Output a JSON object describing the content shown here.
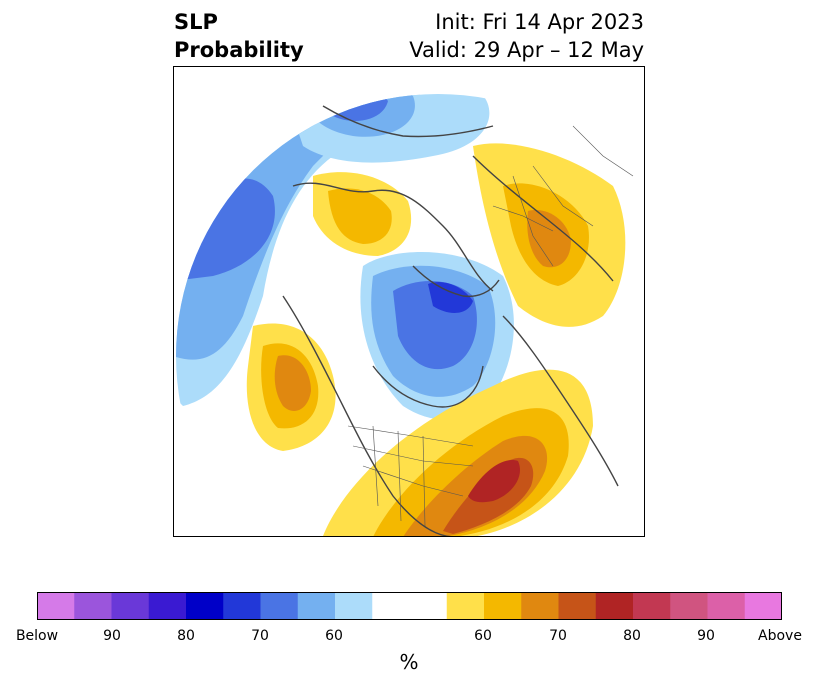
{
  "title": {
    "left_line1": "SLP",
    "left_line2": "Probability",
    "right_line1": "Init: Fri 14 Apr 2023",
    "right_line2": "Valid: 29 Apr – 12 May"
  },
  "colorbar": {
    "unit": "%",
    "tick_labels": [
      "Below",
      "90",
      "80",
      "70",
      "60",
      "60",
      "70",
      "80",
      "90",
      "Above"
    ],
    "below_colors": [
      "#d57ae8",
      "#9b55dc",
      "#6a38d8",
      "#3a1ad2",
      "#0000c8",
      "#2238d8",
      "#4a74e4",
      "#74b0f0",
      "#acdcfa"
    ],
    "neutral_color": "#ffffff",
    "above_colors": [
      "#ffe04a",
      "#f4b800",
      "#e08810",
      "#c65418",
      "#b02424",
      "#c23852",
      "#d05480",
      "#dc60a8",
      "#e878e0"
    ]
  },
  "map": {
    "projection": "north-polar-stereographic",
    "features": [
      "coastlines",
      "borders",
      "us-states"
    ]
  }
}
